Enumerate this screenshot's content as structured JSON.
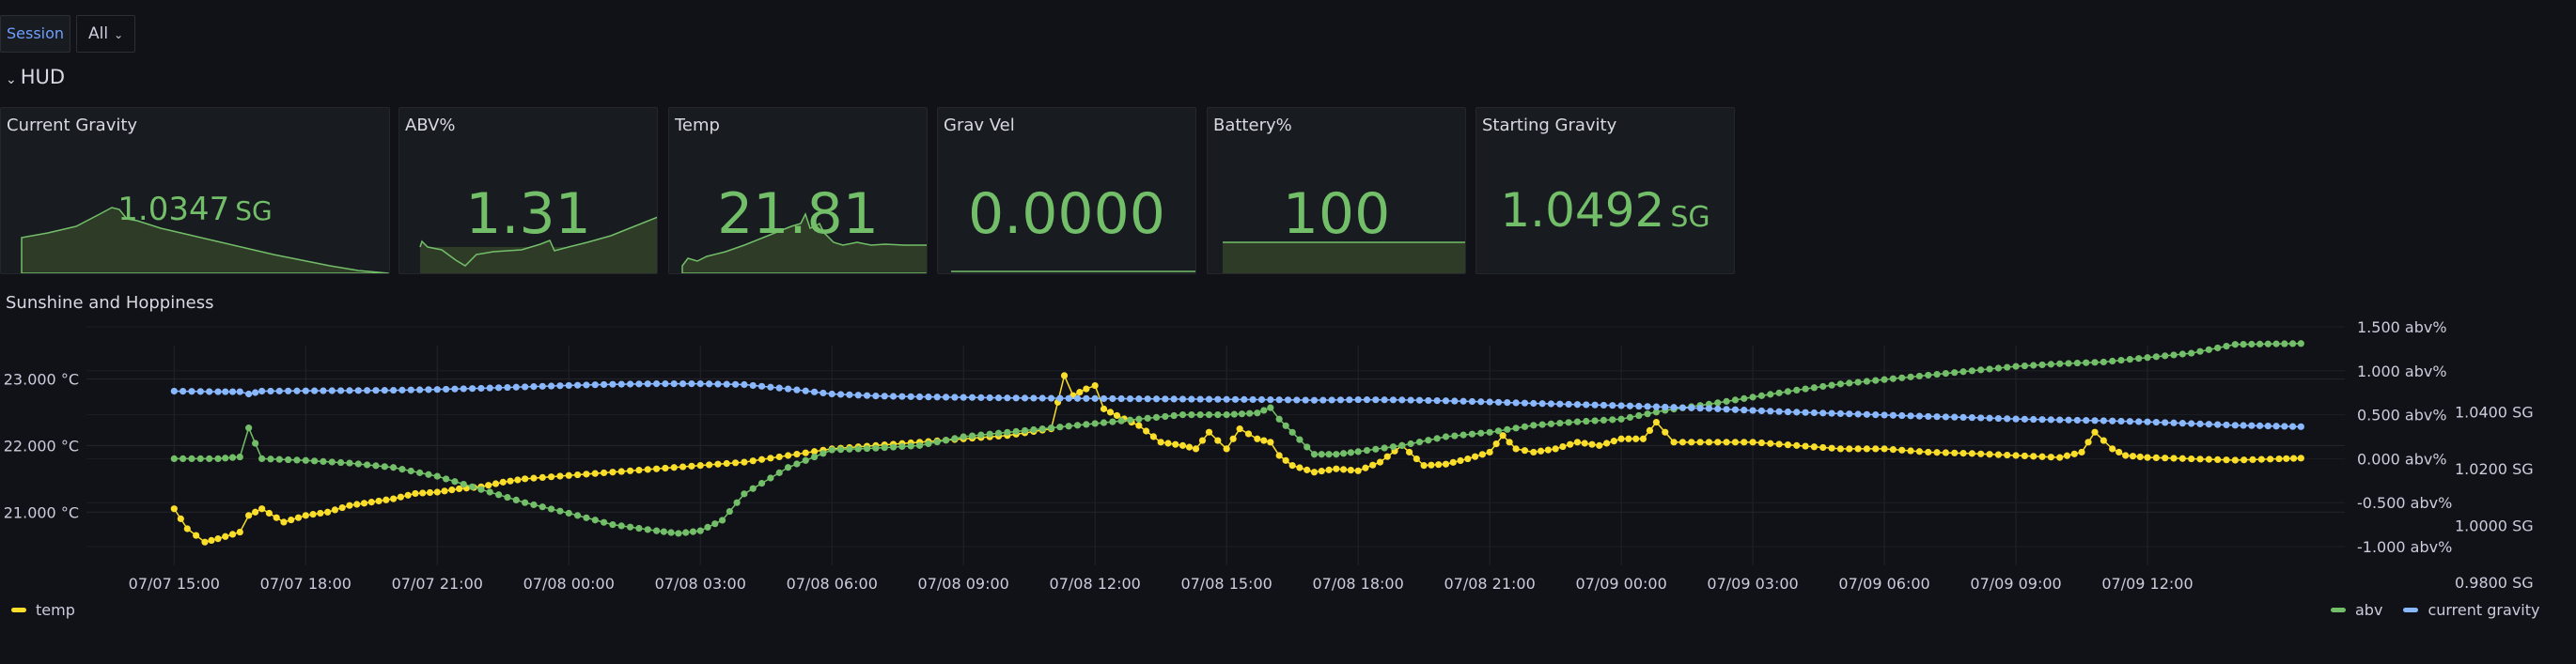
{
  "variables": {
    "label": "Session",
    "value": "All"
  },
  "row": {
    "title": "HUD"
  },
  "stats": [
    {
      "title": "Current Gravity",
      "value": "1.0347",
      "unit": "SG"
    },
    {
      "title": "ABV%",
      "value": "1.31",
      "unit": ""
    },
    {
      "title": "Temp",
      "value": "21.81",
      "unit": ""
    },
    {
      "title": "Grav Vel",
      "value": "0.0000",
      "unit": ""
    },
    {
      "title": "Battery%",
      "value": "100",
      "unit": ""
    },
    {
      "title": "Starting Gravity",
      "value": "1.0492",
      "unit": "SG"
    }
  ],
  "timeseries": {
    "title": "Sunshine and Hoppiness"
  },
  "colors": {
    "background": "#111217",
    "panel": "#181b1f",
    "stat_green": "#73bf69",
    "temp": "#fade2a",
    "abv": "#73bf69",
    "gravity": "#8ab8ff"
  },
  "chart_data": {
    "type": "line",
    "title": "Sunshine and Hoppiness",
    "x_ticks": [
      "07/07 15:00",
      "07/07 18:00",
      "07/07 21:00",
      "07/08 00:00",
      "07/08 03:00",
      "07/08 06:00",
      "07/08 09:00",
      "07/08 12:00",
      "07/08 15:00",
      "07/08 18:00",
      "07/08 21:00",
      "07/09 00:00",
      "07/09 03:00",
      "07/09 06:00",
      "07/09 09:00",
      "07/09 12:00"
    ],
    "axes": {
      "temp": {
        "ticks": [
          "23.000 °C",
          "22.000 °C",
          "21.000 °C"
        ],
        "range": [
          20.2,
          23.5
        ],
        "position": "left"
      },
      "abv": {
        "ticks": [
          "1.500 abv%",
          "1.000 abv%",
          "0.500 abv%",
          "0.000 abv%",
          "-0.500 abv%",
          "-1.000 abv%"
        ],
        "range": [
          -1.0,
          1.5
        ],
        "position": "right"
      },
      "gravity": {
        "ticks": [
          "1.0400 SG",
          "1.0200 SG",
          "1.0000 SG",
          "0.9800 SG"
        ],
        "range": [
          0.98,
          1.05
        ],
        "position": "right"
      }
    },
    "grid": true,
    "legend_left": [
      "temp"
    ],
    "legend_right": [
      "abv",
      "current gravity"
    ],
    "series": [
      {
        "name": "temp",
        "axis": "temp",
        "color": "#fade2a",
        "x": [
          15.0,
          15.3,
          15.7,
          16.0,
          16.5,
          16.7,
          17.0,
          17.5,
          18.0,
          18.5,
          19.0,
          19.5,
          20.0,
          20.5,
          21.0,
          21.5,
          22.0,
          22.5,
          23.0,
          24.0,
          25.0,
          26.0,
          27.0,
          28.0,
          29.0,
          30.0,
          31.0,
          32.0,
          33.0,
          34.0,
          35.0,
          35.3,
          35.5,
          35.8,
          36.0,
          36.2,
          36.5,
          37.0,
          37.5,
          38.0,
          38.3,
          38.6,
          39.0,
          39.3,
          39.7,
          40.0,
          40.2,
          40.5,
          41.0,
          41.5,
          42.0,
          42.5,
          43.0,
          43.5,
          44.0,
          44.5,
          45.0,
          45.3,
          45.6,
          46.0,
          46.5,
          47.0,
          47.5,
          48.0,
          48.5,
          48.8,
          49.2,
          50.0,
          51.0,
          52.0,
          53.0,
          54.0,
          55.0,
          56.0,
          57.0,
          58.0,
          58.5,
          58.8,
          59.2,
          59.5,
          60.0,
          61.0,
          62.0,
          63.0,
          63.5
        ],
        "y": [
          21.05,
          20.75,
          20.55,
          20.6,
          20.7,
          20.95,
          21.05,
          20.85,
          20.95,
          21.0,
          21.1,
          21.15,
          21.2,
          21.28,
          21.3,
          21.35,
          21.38,
          21.45,
          21.5,
          21.55,
          21.6,
          21.65,
          21.7,
          21.75,
          21.85,
          21.95,
          22.0,
          22.05,
          22.1,
          22.15,
          22.25,
          23.05,
          22.75,
          22.85,
          22.9,
          22.55,
          22.45,
          22.3,
          22.05,
          22.0,
          21.95,
          22.2,
          21.95,
          22.25,
          22.1,
          22.05,
          21.85,
          21.7,
          21.6,
          21.65,
          21.62,
          21.75,
          22.0,
          21.7,
          21.72,
          21.8,
          21.9,
          22.15,
          21.95,
          21.9,
          21.95,
          22.05,
          22.0,
          22.1,
          22.1,
          22.35,
          22.05,
          22.05,
          22.05,
          22.0,
          21.95,
          21.95,
          21.9,
          21.88,
          21.85,
          21.82,
          21.9,
          22.2,
          21.95,
          21.85,
          21.82,
          21.8,
          21.78,
          21.8,
          21.81
        ]
      },
      {
        "name": "abv",
        "axis": "abv",
        "color": "#73bf69",
        "x": [
          15.0,
          16.0,
          16.5,
          16.7,
          17.0,
          18.0,
          19.0,
          20.0,
          21.0,
          22.0,
          23.0,
          24.0,
          25.0,
          26.0,
          26.5,
          27.0,
          27.5,
          28.0,
          29.0,
          30.0,
          31.0,
          32.0,
          33.0,
          34.0,
          35.0,
          36.0,
          37.0,
          38.0,
          39.0,
          39.7,
          40.0,
          40.2,
          40.5,
          41.0,
          41.5,
          42.0,
          43.0,
          44.0,
          45.0,
          46.0,
          47.0,
          48.0,
          49.0,
          50.0,
          51.0,
          52.0,
          53.0,
          54.0,
          55.0,
          56.0,
          57.0,
          58.0,
          59.0,
          60.0,
          61.0,
          62.0,
          63.5
        ],
        "y": [
          0.0,
          0.0,
          0.02,
          0.35,
          0.0,
          -0.02,
          -0.05,
          -0.1,
          -0.2,
          -0.35,
          -0.5,
          -0.62,
          -0.75,
          -0.82,
          -0.85,
          -0.82,
          -0.7,
          -0.4,
          -0.1,
          0.1,
          0.12,
          0.15,
          0.25,
          0.3,
          0.35,
          0.4,
          0.45,
          0.5,
          0.5,
          0.52,
          0.58,
          0.45,
          0.3,
          0.05,
          0.05,
          0.08,
          0.15,
          0.25,
          0.3,
          0.38,
          0.42,
          0.45,
          0.55,
          0.62,
          0.7,
          0.78,
          0.85,
          0.9,
          0.95,
          1.0,
          1.05,
          1.08,
          1.1,
          1.15,
          1.2,
          1.3,
          1.31
        ]
      },
      {
        "name": "current gravity",
        "axis": "gravity",
        "color": "#8ab8ff",
        "x": [
          15.0,
          16.0,
          16.5,
          16.7,
          17.0,
          18.0,
          19.0,
          20.0,
          21.0,
          22.0,
          23.0,
          24.0,
          25.0,
          26.0,
          27.0,
          28.0,
          29.0,
          30.0,
          31.0,
          32.0,
          33.0,
          34.0,
          35.0,
          36.0,
          37.0,
          38.0,
          39.0,
          40.0,
          41.0,
          42.0,
          43.0,
          44.0,
          45.0,
          46.0,
          47.0,
          48.0,
          49.0,
          50.0,
          51.0,
          52.0,
          53.0,
          54.0,
          55.0,
          56.0,
          57.0,
          58.0,
          59.0,
          60.0,
          61.0,
          62.0,
          63.5
        ],
        "y": [
          1.0472,
          1.047,
          1.047,
          1.0462,
          1.0472,
          1.0473,
          1.0474,
          1.0475,
          1.0478,
          1.0482,
          1.0487,
          1.0492,
          1.0496,
          1.0498,
          1.0498,
          1.0495,
          1.048,
          1.0462,
          1.0455,
          1.0452,
          1.045,
          1.0448,
          1.0447,
          1.0446,
          1.0445,
          1.0444,
          1.0443,
          1.0442,
          1.044,
          1.0442,
          1.0441,
          1.0438,
          1.0434,
          1.0429,
          1.0425,
          1.0421,
          1.0416,
          1.0411,
          1.0404,
          1.0398,
          1.0393,
          1.0388,
          1.0383,
          1.0379,
          1.0374,
          1.0371,
          1.0368,
          1.0364,
          1.0358,
          1.0352,
          1.0347
        ]
      }
    ]
  }
}
